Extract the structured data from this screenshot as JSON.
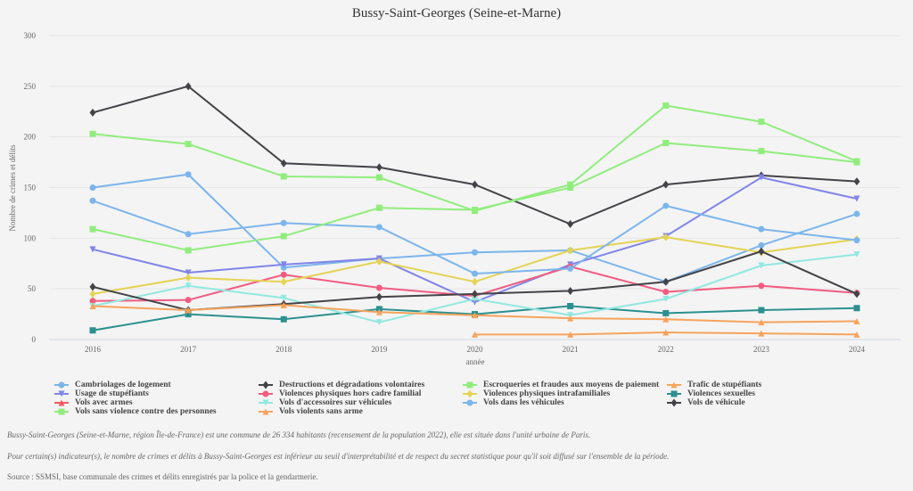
{
  "chart_data": {
    "type": "line",
    "title": "Bussy-Saint-Georges (Seine-et-Marne)",
    "xlabel": "année",
    "ylabel": "Nombre de crimes et délits",
    "ylim": [
      0,
      300
    ],
    "yticks": [
      0,
      50,
      100,
      150,
      200,
      250,
      300
    ],
    "x": [
      2016,
      2017,
      2018,
      2019,
      2020,
      2021,
      2022,
      2023,
      2024
    ],
    "grid": true,
    "legend_position": "bottom",
    "series": [
      {
        "name": "Cambriolages de logement",
        "color": "#7cb5ec",
        "marker": "circle",
        "values": [
          150,
          163,
          71,
          80,
          86,
          88,
          57,
          93,
          124
        ]
      },
      {
        "name": "Destructions et dégradations volontaires",
        "color": "#434348",
        "marker": "diamond",
        "values": [
          224,
          250,
          174,
          170,
          153,
          114,
          153,
          162,
          156
        ]
      },
      {
        "name": "Escroqueries et fraudes aux moyens de paiement",
        "color": "#90ed7d",
        "marker": "square",
        "values": [
          203,
          193,
          161,
          160,
          127,
          153,
          231,
          215,
          176
        ]
      },
      {
        "name": "Trafic de stupéfiants",
        "color": "#f7a35c",
        "marker": "triangle",
        "values": [
          null,
          null,
          null,
          null,
          5,
          5,
          7,
          6,
          5
        ]
      },
      {
        "name": "Usage de stupéfiants",
        "color": "#8085e9",
        "marker": "triangle-down",
        "values": [
          89,
          66,
          74,
          80,
          37,
          74,
          102,
          160,
          139
        ]
      },
      {
        "name": "Violences physiques hors cadre familial",
        "color": "#f15c80",
        "marker": "circle",
        "values": [
          38,
          39,
          64,
          51,
          43,
          72,
          47,
          53,
          46
        ]
      },
      {
        "name": "Violences physiques intrafamiliales",
        "color": "#e4d354",
        "marker": "diamond",
        "values": [
          45,
          61,
          57,
          77,
          57,
          88,
          101,
          86,
          99
        ]
      },
      {
        "name": "Violences sexuelles",
        "color": "#2b908f",
        "marker": "square",
        "values": [
          9,
          25,
          20,
          30,
          25,
          33,
          26,
          29,
          31
        ]
      },
      {
        "name": "Vols avec armes",
        "color": "#f45b5b",
        "marker": "triangle",
        "values": [
          null,
          null,
          null,
          null,
          null,
          null,
          null,
          null,
          null
        ]
      },
      {
        "name": "Vols d'accessoires sur véhicules",
        "color": "#91e8e1",
        "marker": "triangle-down",
        "values": [
          33,
          53,
          41,
          17,
          40,
          24,
          40,
          73,
          84
        ]
      },
      {
        "name": "Vols dans les véhicules",
        "color": "#7cb5ec",
        "marker": "circle",
        "values": [
          137,
          104,
          115,
          111,
          65,
          70,
          132,
          109,
          98
        ]
      },
      {
        "name": "Vols de véhicule",
        "color": "#434348",
        "marker": "diamond",
        "values": [
          52,
          29,
          35,
          42,
          45,
          48,
          57,
          87,
          45
        ]
      },
      {
        "name": "Vols sans violence contre des personnes",
        "color": "#90ed7d",
        "marker": "square",
        "values": [
          109,
          88,
          102,
          130,
          128,
          150,
          194,
          186,
          175
        ]
      },
      {
        "name": "Vols violents sans arme",
        "color": "#f7a35c",
        "marker": "triangle",
        "values": [
          33,
          29,
          34,
          27,
          24,
          21,
          20,
          17,
          18
        ]
      }
    ]
  },
  "footer": {
    "line1": "Bussy-Saint-Georges (Seine-et-Marne, région Île-de-France) est une commune de 26 334 habitants (recensement de la population 2022), elle est située dans l'unité urbaine de Paris.",
    "line2": "Pour certain(s) indicateur(s), le nombre de crimes et délits à Bussy-Saint-Georges est inférieur au seuil d'interprétabilité et de respect du secret statistique pour qu'il soit diffusé sur l'ensemble de la période.",
    "source": "Source : SSMSI, base communale des crimes et délits enregistrés par la police et la gendarmerie."
  }
}
